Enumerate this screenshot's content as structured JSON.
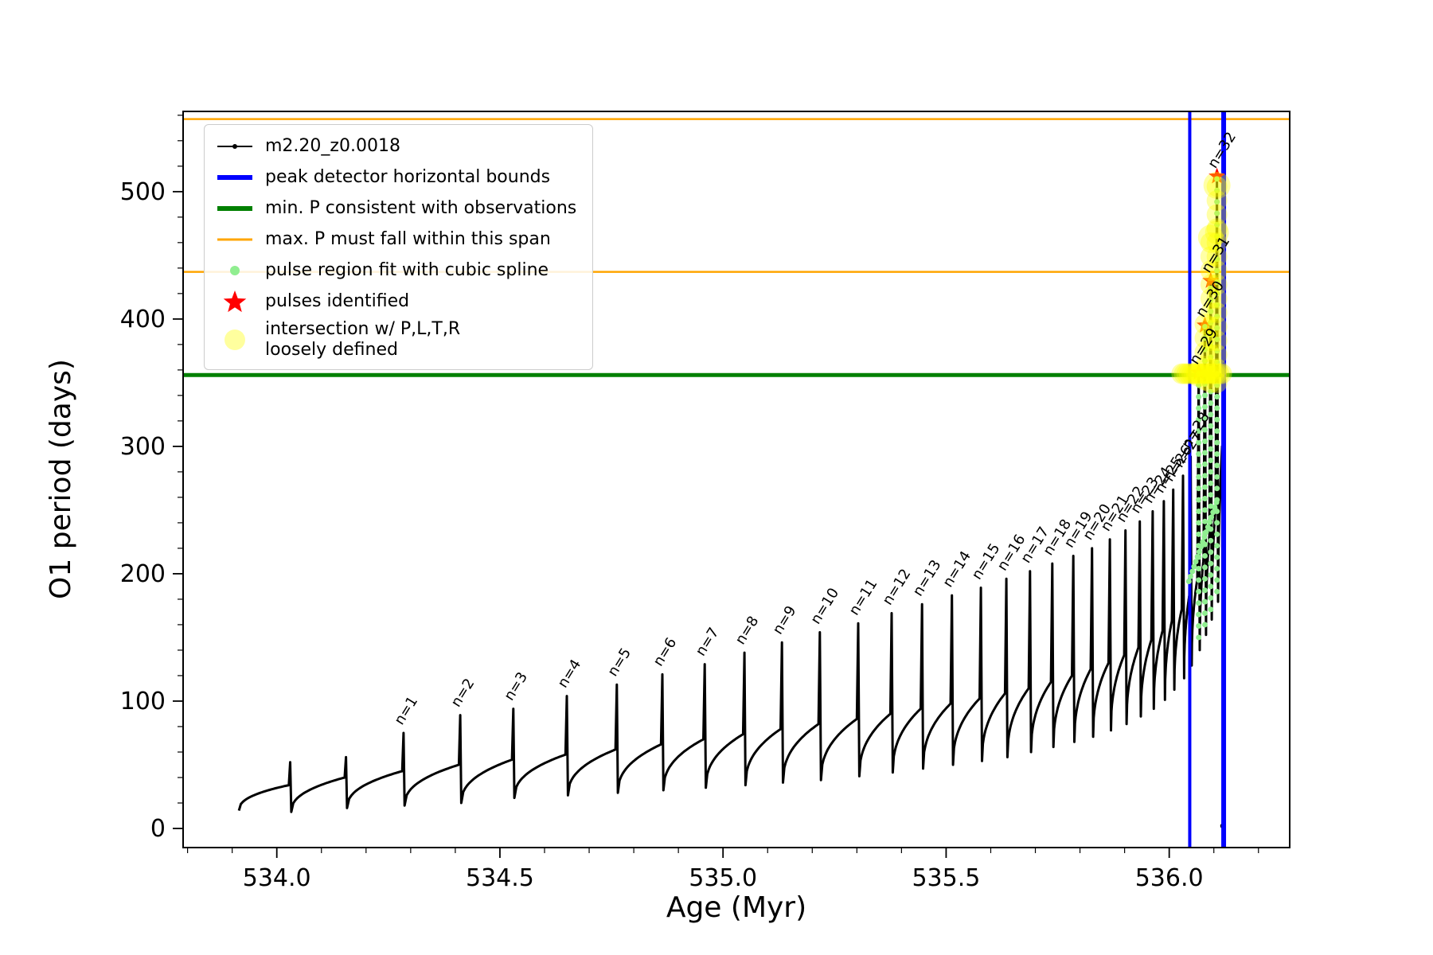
{
  "chart_data": {
    "type": "line",
    "title": "",
    "xlabel": "Age (Myr)",
    "ylabel": "O1 period (days)",
    "xlim": [
      533.79,
      536.27
    ],
    "ylim": [
      -15,
      563
    ],
    "xticks": [
      534.0,
      534.5,
      535.0,
      535.5,
      536.0
    ],
    "xtick_labels": [
      "534.0",
      "534.5",
      "535.0",
      "535.5",
      "536.0"
    ],
    "yticks": [
      0,
      100,
      200,
      300,
      400,
      500
    ],
    "ytick_labels": [
      "0",
      "100",
      "200",
      "300",
      "400",
      "500"
    ],
    "x_minor_step": 0.1,
    "y_minor_step": 20,
    "series": {
      "name": "m2.20_z0.0018",
      "color": "#000000"
    },
    "start": {
      "x": 533.915,
      "y": 14
    },
    "pulses": [
      {
        "label": null,
        "x": 534.03,
        "peak": 52,
        "shoulder": 34,
        "dip": 13
      },
      {
        "label": null,
        "x": 534.155,
        "peak": 56,
        "shoulder": 40,
        "dip": 16
      },
      {
        "label": "n=1",
        "x": 534.284,
        "peak": 75,
        "shoulder": 45,
        "dip": 18
      },
      {
        "label": "n=2",
        "x": 534.411,
        "peak": 89,
        "shoulder": 50,
        "dip": 20
      },
      {
        "label": "n=3",
        "x": 534.53,
        "peak": 94,
        "shoulder": 54,
        "dip": 24
      },
      {
        "label": "n=4",
        "x": 534.65,
        "peak": 104,
        "shoulder": 58,
        "dip": 26
      },
      {
        "label": "n=5",
        "x": 534.762,
        "peak": 113,
        "shoulder": 62,
        "dip": 28
      },
      {
        "label": "n=6",
        "x": 534.864,
        "peak": 121,
        "shoulder": 66,
        "dip": 30
      },
      {
        "label": "n=7",
        "x": 534.959,
        "peak": 129,
        "shoulder": 70,
        "dip": 32
      },
      {
        "label": "n=8",
        "x": 535.048,
        "peak": 138,
        "shoulder": 74,
        "dip": 34
      },
      {
        "label": "n=9",
        "x": 535.132,
        "peak": 146,
        "shoulder": 78,
        "dip": 36
      },
      {
        "label": "n=10",
        "x": 535.217,
        "peak": 154,
        "shoulder": 82,
        "dip": 38
      },
      {
        "label": "n=11",
        "x": 535.303,
        "peak": 161,
        "shoulder": 86,
        "dip": 41
      },
      {
        "label": "n=12",
        "x": 535.378,
        "peak": 169,
        "shoulder": 90,
        "dip": 44
      },
      {
        "label": "n=13",
        "x": 535.446,
        "peak": 176,
        "shoulder": 94,
        "dip": 47
      },
      {
        "label": "n=14",
        "x": 535.513,
        "peak": 183,
        "shoulder": 98,
        "dip": 50
      },
      {
        "label": "n=15",
        "x": 535.578,
        "peak": 189,
        "shoulder": 102,
        "dip": 53
      },
      {
        "label": "n=16",
        "x": 535.635,
        "peak": 196,
        "shoulder": 106,
        "dip": 56
      },
      {
        "label": "n=17",
        "x": 535.688,
        "peak": 202,
        "shoulder": 110,
        "dip": 60
      },
      {
        "label": "n=18",
        "x": 535.738,
        "peak": 208,
        "shoulder": 115,
        "dip": 64
      },
      {
        "label": "n=19",
        "x": 535.785,
        "peak": 214,
        "shoulder": 120,
        "dip": 68
      },
      {
        "label": "n=20",
        "x": 535.827,
        "peak": 220,
        "shoulder": 125,
        "dip": 72
      },
      {
        "label": "n=21",
        "x": 535.867,
        "peak": 227,
        "shoulder": 130,
        "dip": 77
      },
      {
        "label": "n=22",
        "x": 535.902,
        "peak": 234,
        "shoulder": 136,
        "dip": 82
      },
      {
        "label": "n=23",
        "x": 535.934,
        "peak": 241,
        "shoulder": 142,
        "dip": 88
      },
      {
        "label": "n=24",
        "x": 535.963,
        "peak": 249,
        "shoulder": 148,
        "dip": 94
      },
      {
        "label": "n=25",
        "x": 535.988,
        "peak": 257,
        "shoulder": 155,
        "dip": 101
      },
      {
        "label": "n=26",
        "x": 536.009,
        "peak": 266,
        "shoulder": 163,
        "dip": 109
      },
      {
        "label": "n=27",
        "x": 536.031,
        "peak": 277,
        "shoulder": 172,
        "dip": 118
      },
      {
        "label": "n=28",
        "x": 536.048,
        "peak": 292,
        "shoulder": 183,
        "dip": 128
      },
      {
        "label": "n=29",
        "x": 536.066,
        "peak": 358,
        "shoulder": 196,
        "dip": 140
      },
      {
        "label": "n=30",
        "x": 536.08,
        "peak": 395,
        "shoulder": 212,
        "dip": 152
      },
      {
        "label": "n=31",
        "x": 536.093,
        "peak": 430,
        "shoulder": 230,
        "dip": 164
      },
      {
        "label": "n=32",
        "x": 536.107,
        "peak": 512,
        "shoulder": 252,
        "dip": 178
      }
    ],
    "tail": {
      "rise_x": 536.1185,
      "rise_y": 300,
      "end_x": 536.1205,
      "end_y": 2
    },
    "hlines": [
      {
        "y": 557,
        "color": "#ffa500",
        "lw": 2.5,
        "meaning": "max. P must fall within this span (upper)"
      },
      {
        "y": 437,
        "color": "#ffa500",
        "lw": 2.5,
        "meaning": "max. P must fall within this span (lower)"
      },
      {
        "y": 356,
        "color": "#008000",
        "lw": 5,
        "meaning": "min. P consistent with observations"
      }
    ],
    "vlines": [
      {
        "x": 536.046,
        "color": "#0000ff",
        "lw": 4,
        "meaning": "peak detector horizontal bound (left)"
      },
      {
        "x": 536.122,
        "color": "#0000ff",
        "lw": 6,
        "meaning": "peak detector horizontal bound (right)"
      }
    ],
    "stars": [
      {
        "x": 536.066,
        "y": 358
      },
      {
        "x": 536.08,
        "y": 395
      },
      {
        "x": 536.093,
        "y": 430
      },
      {
        "x": 536.107,
        "y": 512
      }
    ],
    "spline": {
      "color": "#90ee90",
      "dot_r": 3.5,
      "step": 9,
      "columns": [
        {
          "x": 536.066,
          "y0": 150,
          "y1": 358
        },
        {
          "x": 536.08,
          "y0": 160,
          "y1": 395
        },
        {
          "x": 536.093,
          "y0": 172,
          "y1": 430
        },
        {
          "x": 536.107,
          "y0": 186,
          "y1": 512
        }
      ],
      "base": {
        "x0": 536.044,
        "x1": 536.106,
        "y0": 194,
        "y1": 256,
        "n": 16
      }
    },
    "yellow": {
      "color": "#ffff00",
      "opacity": 0.35,
      "r": 13,
      "row": {
        "y": 357,
        "x0": 536.028,
        "x1": 536.118,
        "step": 0.0056
      },
      "col_step": 11,
      "columns": [
        {
          "x": 536.08,
          "y0": 352,
          "y1": 398
        },
        {
          "x": 536.093,
          "y0": 350,
          "y1": 468
        },
        {
          "x": 536.107,
          "y0": 350,
          "y1": 512
        }
      ],
      "blobs": [
        {
          "x": 536.066,
          "y": 357,
          "r": 16
        },
        {
          "x": 536.093,
          "y": 464,
          "r": 16
        },
        {
          "x": 536.107,
          "y": 468,
          "r": 15
        },
        {
          "x": 536.107,
          "y": 505,
          "r": 17
        }
      ]
    },
    "legend": {
      "items": [
        {
          "type": "line-dot",
          "color": "#000000",
          "opacity": 1,
          "label_lines": [
            "m2.20_z0.0018"
          ]
        },
        {
          "type": "thick-line",
          "color": "#0000ff",
          "opacity": 1,
          "label_lines": [
            "peak detector horizontal bounds"
          ]
        },
        {
          "type": "thick-line",
          "color": "#008000",
          "opacity": 1,
          "label_lines": [
            "min. P consistent with observations"
          ]
        },
        {
          "type": "line",
          "color": "#ffa500",
          "opacity": 1,
          "label_lines": [
            "max. P must fall within this span"
          ]
        },
        {
          "type": "dot",
          "color": "#90ee90",
          "opacity": 1,
          "label_lines": [
            "pulse region fit with cubic spline"
          ]
        },
        {
          "type": "star",
          "color": "#ff0000",
          "opacity": 1,
          "label_lines": [
            "pulses identified"
          ]
        },
        {
          "type": "big-dot",
          "color": "#ffff00",
          "opacity": 0.38,
          "label_lines": [
            "intersection w/ P,L,T,R",
            "loosely defined"
          ]
        }
      ]
    }
  }
}
